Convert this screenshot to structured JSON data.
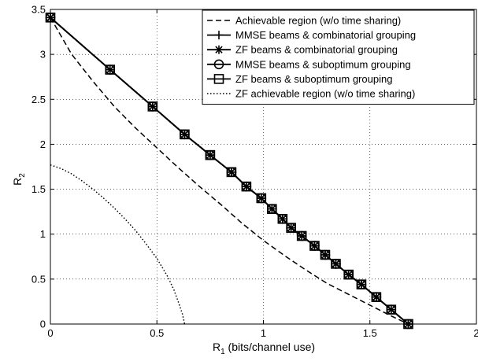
{
  "chart_data": {
    "type": "line",
    "title": "",
    "xlabel": {
      "main": "R",
      "sub": "1",
      "rest": " (bits/channel use)"
    },
    "ylabel": {
      "main": "R",
      "sub": "2"
    },
    "xlim": [
      0,
      2
    ],
    "ylim": [
      0,
      3.5
    ],
    "xticks": [
      "0",
      "0.5",
      "1",
      "1.5",
      "2"
    ],
    "xtick_values": [
      0,
      0.5,
      1,
      1.5,
      2
    ],
    "yticks": [
      "0",
      "0.5",
      "1",
      "1.5",
      "2",
      "2.5",
      "3",
      "3.5"
    ],
    "ytick_values": [
      0,
      0.5,
      1,
      1.5,
      2,
      2.5,
      3,
      3.5
    ],
    "grid": true,
    "legend_position": "top-right",
    "series": [
      {
        "name": "Achievable region (w/o time sharing)",
        "style": "dashed",
        "color": "#000000",
        "marker": "none",
        "x": [
          0,
          0.1,
          0.2,
          0.3,
          0.4,
          0.5,
          0.6,
          0.7,
          0.8,
          0.9,
          1.0,
          1.1,
          1.2,
          1.3,
          1.4,
          1.5,
          1.6,
          1.68
        ],
        "y": [
          3.41,
          3.0,
          2.7,
          2.42,
          2.18,
          1.96,
          1.74,
          1.53,
          1.33,
          1.12,
          0.93,
          0.76,
          0.6,
          0.45,
          0.33,
          0.21,
          0.09,
          0.0
        ]
      },
      {
        "name": "MMSE beams & combinatorial grouping",
        "style": "solid",
        "color": "#000000",
        "marker": "plus",
        "x": [
          0,
          0.28,
          0.48,
          0.63,
          0.75,
          0.85,
          0.92,
          0.99,
          1.04,
          1.09,
          1.13,
          1.18,
          1.24,
          1.29,
          1.34,
          1.4,
          1.46,
          1.53,
          1.6,
          1.68
        ],
        "y": [
          3.41,
          2.83,
          2.42,
          2.11,
          1.88,
          1.69,
          1.53,
          1.4,
          1.28,
          1.17,
          1.07,
          0.98,
          0.87,
          0.77,
          0.67,
          0.55,
          0.44,
          0.3,
          0.16,
          0.0
        ]
      },
      {
        "name": "ZF beams & combinatorial grouping",
        "style": "solid",
        "color": "#000000",
        "marker": "star",
        "x": [
          0,
          0.28,
          0.48,
          0.63,
          0.75,
          0.85,
          0.92,
          0.99,
          1.04,
          1.09,
          1.13,
          1.18,
          1.24,
          1.29,
          1.34,
          1.4,
          1.46,
          1.53,
          1.6,
          1.68
        ],
        "y": [
          3.41,
          2.83,
          2.42,
          2.11,
          1.88,
          1.69,
          1.53,
          1.4,
          1.28,
          1.17,
          1.07,
          0.98,
          0.87,
          0.77,
          0.67,
          0.55,
          0.44,
          0.3,
          0.16,
          0.0
        ]
      },
      {
        "name": "MMSE beams & suboptimum grouping",
        "style": "solid",
        "color": "#000000",
        "marker": "circle",
        "x": [
          0,
          0.28,
          0.48,
          0.63,
          0.75,
          0.85,
          0.92,
          0.99,
          1.04,
          1.09,
          1.13,
          1.18,
          1.24,
          1.29,
          1.34,
          1.4,
          1.46,
          1.53,
          1.6,
          1.68
        ],
        "y": [
          3.41,
          2.83,
          2.42,
          2.11,
          1.88,
          1.69,
          1.53,
          1.4,
          1.28,
          1.17,
          1.07,
          0.98,
          0.87,
          0.77,
          0.67,
          0.55,
          0.44,
          0.3,
          0.16,
          0.0
        ]
      },
      {
        "name": "ZF beams & suboptimum grouping",
        "style": "solid",
        "color": "#000000",
        "marker": "square",
        "x": [
          0,
          0.28,
          0.48,
          0.63,
          0.75,
          0.85,
          0.92,
          0.99,
          1.04,
          1.09,
          1.13,
          1.18,
          1.24,
          1.29,
          1.34,
          1.4,
          1.46,
          1.53,
          1.6,
          1.68
        ],
        "y": [
          3.41,
          2.83,
          2.42,
          2.11,
          1.88,
          1.69,
          1.53,
          1.4,
          1.28,
          1.17,
          1.07,
          0.98,
          0.87,
          0.77,
          0.67,
          0.55,
          0.44,
          0.3,
          0.16,
          0.0
        ]
      },
      {
        "name": "ZF achievable region (w/o time sharing)",
        "style": "dotted",
        "color": "#000000",
        "marker": "none",
        "x": [
          0,
          0.05,
          0.1,
          0.15,
          0.2,
          0.25,
          0.3,
          0.35,
          0.4,
          0.45,
          0.5,
          0.55,
          0.58,
          0.6,
          0.62,
          0.63
        ],
        "y": [
          1.77,
          1.73,
          1.67,
          1.59,
          1.5,
          1.4,
          1.29,
          1.17,
          1.04,
          0.89,
          0.73,
          0.53,
          0.38,
          0.25,
          0.11,
          0.0
        ]
      }
    ]
  }
}
